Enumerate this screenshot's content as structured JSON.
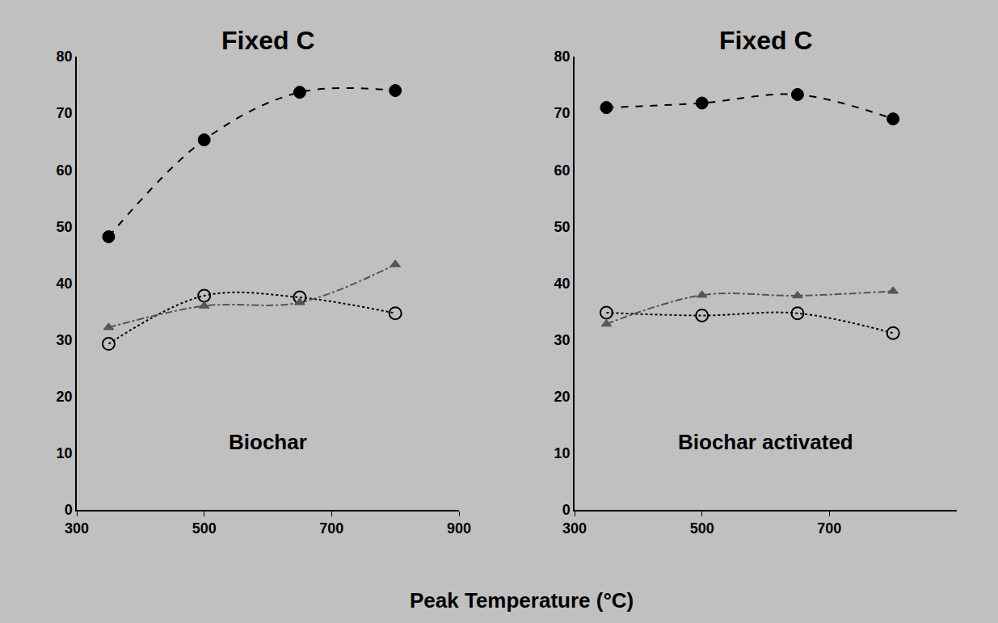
{
  "x_label": "Peak Temperature (°C)",
  "chart_data": [
    {
      "type": "line",
      "title": "Fixed C",
      "annotation": "Biochar",
      "x": [
        350,
        500,
        650,
        800
      ],
      "series": [
        {
          "color": "#000000",
          "marker": "circle",
          "line_style": "dash",
          "values": [
            48.2,
            65.3,
            73.7,
            74.0
          ]
        },
        {
          "color": "#000000",
          "marker": "circle-open",
          "line_style": "dot",
          "values": [
            29.3,
            37.8,
            37.5,
            34.7
          ]
        },
        {
          "color": "#555555",
          "marker": "triangle-up",
          "line_style": "dashdot",
          "values": [
            32.2,
            36.0,
            36.6,
            43.3
          ]
        }
      ],
      "xlim": [
        300,
        900
      ],
      "xticks": [
        300,
        500,
        700,
        900
      ],
      "ylim": [
        0,
        80
      ],
      "yticks": [
        0,
        10,
        20,
        30,
        40,
        50,
        60,
        70,
        80
      ],
      "grid": false
    },
    {
      "type": "line",
      "title": "Fixed C",
      "annotation": "Biochar activated",
      "x": [
        350,
        500,
        650,
        800
      ],
      "series": [
        {
          "color": "#000000",
          "marker": "circle",
          "line_style": "dash",
          "values": [
            71.0,
            71.8,
            73.3,
            69.0
          ]
        },
        {
          "color": "#000000",
          "marker": "circle-open",
          "line_style": "dot",
          "values": [
            34.8,
            34.3,
            34.7,
            31.2
          ]
        },
        {
          "color": "#555555",
          "marker": "triangle-up",
          "line_style": "dashdot",
          "values": [
            32.8,
            37.9,
            37.8,
            38.6
          ]
        }
      ],
      "xlim": [
        300,
        900
      ],
      "xticks": [
        300,
        500,
        700
      ],
      "ylim": [
        0,
        80
      ],
      "yticks": [
        0,
        10,
        20,
        30,
        40,
        50,
        60,
        70,
        80
      ],
      "grid": false
    }
  ]
}
